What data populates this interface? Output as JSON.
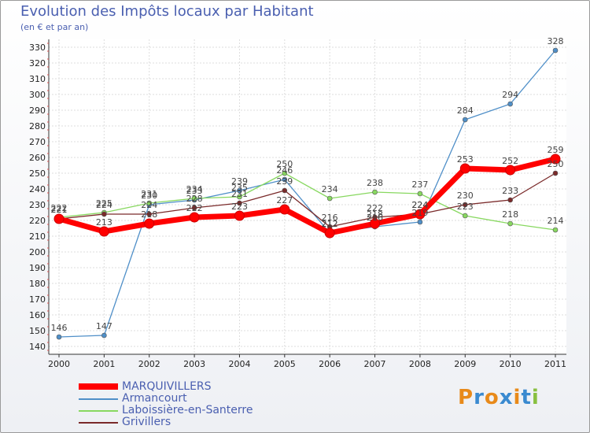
{
  "chart_data": {
    "type": "line",
    "title": "Evolution des Impôts locaux par Habitant",
    "subtitle": "(en € et par an)",
    "x": [
      "2000",
      "2001",
      "2002",
      "2003",
      "2004",
      "2005",
      "2006",
      "2007",
      "2008",
      "2009",
      "2010",
      "2011"
    ],
    "ylim": [
      140,
      330
    ],
    "yticks": [
      140,
      150,
      160,
      170,
      180,
      190,
      200,
      210,
      220,
      230,
      240,
      250,
      260,
      270,
      280,
      290,
      300,
      310,
      320,
      330
    ],
    "series": [
      {
        "name": "MARQUIVILLERS",
        "color": "#ff0000",
        "values": [
          221,
          213,
          218,
          222,
          223,
          227,
          212,
          218,
          224,
          253,
          252,
          259
        ]
      },
      {
        "name": "Armancourt",
        "color": "#4f8fc8",
        "values": [
          146,
          147,
          230,
          233,
          239,
          246,
          212,
          216,
          219,
          284,
          294,
          328
        ]
      },
      {
        "name": "Laboissière-en-Santerre",
        "color": "#88d860",
        "values": [
          222,
          225,
          231,
          234,
          235,
          250,
          234,
          238,
          237,
          223,
          218,
          214
        ]
      },
      {
        "name": "Grivillers",
        "color": "#7a2a2a",
        "values": [
          221,
          224,
          224,
          228,
          231,
          239,
          216,
          222,
          224,
          230,
          233,
          250
        ]
      }
    ],
    "label_text": [
      [
        "221",
        "213",
        "218",
        "222",
        "223",
        "227",
        "212",
        "218",
        "224",
        "253",
        "252",
        "259"
      ],
      [
        "146",
        "147",
        "230",
        "233",
        "239",
        "246",
        "212",
        "216",
        "219",
        "284",
        "294",
        "328"
      ],
      [
        "222",
        "225",
        "231",
        "234",
        "235",
        "250",
        "234",
        "238",
        "237",
        "223",
        "218",
        "214"
      ],
      [
        "221",
        "224",
        "224",
        "228",
        "231",
        "239",
        "216",
        "222",
        "224",
        "230",
        "233",
        "250"
      ]
    ]
  },
  "logo": {
    "text": "Proxiti",
    "colors": [
      "#e88a1a",
      "#3a8ad0",
      "#e88a1a",
      "#3a8ad0",
      "#e88a1a",
      "#3a8ad0",
      "#88c040"
    ]
  }
}
